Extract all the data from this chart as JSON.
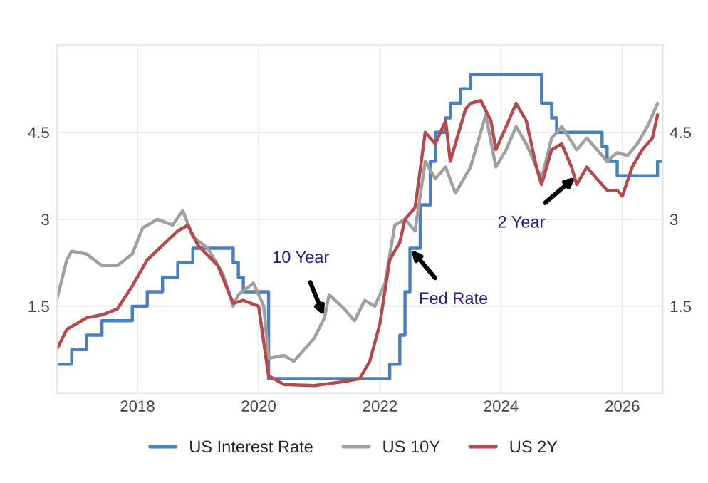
{
  "chart_data": {
    "type": "line",
    "xlim": [
      "2016-09",
      "2026-09"
    ],
    "xticks": [
      "2018",
      "2020",
      "2022",
      "2024",
      "2026"
    ],
    "ylim": [
      0,
      6
    ],
    "yticks": [
      1.5,
      3,
      4.5
    ],
    "y2lim": [
      0,
      6
    ],
    "y2ticks": [
      1.5,
      3,
      4.5
    ],
    "grid": true,
    "legend": "bottom",
    "series": [
      {
        "name": "US Interest Rate",
        "type": "step",
        "color": "#4a7fc1",
        "x": [
          "2016-09",
          "2016-12",
          "2017-03",
          "2017-06",
          "2017-12",
          "2018-03",
          "2018-06",
          "2018-09",
          "2018-12",
          "2019-08",
          "2019-09",
          "2019-10",
          "2020-03",
          "2022-03",
          "2022-05",
          "2022-06",
          "2022-07",
          "2022-09",
          "2022-11",
          "2022-12",
          "2023-02",
          "2023-03",
          "2023-05",
          "2023-07",
          "2024-09",
          "2024-11",
          "2024-12",
          "2025-09",
          "2025-10",
          "2025-12",
          "2026-08",
          "2026-09"
        ],
        "values": [
          0.5,
          0.75,
          1.0,
          1.25,
          1.5,
          1.75,
          2.0,
          2.25,
          2.5,
          2.25,
          2.0,
          1.75,
          0.25,
          0.5,
          1.0,
          1.75,
          2.5,
          3.25,
          4.0,
          4.5,
          4.75,
          5.0,
          5.25,
          5.5,
          5.0,
          4.75,
          4.5,
          4.25,
          4.0,
          3.75,
          4.0,
          4.0
        ]
      },
      {
        "name": "US 10Y",
        "color": "#a0a0a0",
        "x": [
          "2016-09",
          "2016-11",
          "2016-12",
          "2017-03",
          "2017-06",
          "2017-09",
          "2017-12",
          "2018-02",
          "2018-05",
          "2018-08",
          "2018-10",
          "2018-12",
          "2019-03",
          "2019-06",
          "2019-08",
          "2019-09",
          "2019-12",
          "2020-02",
          "2020-03",
          "2020-06",
          "2020-08",
          "2020-12",
          "2021-02",
          "2021-03",
          "2021-06",
          "2021-08",
          "2021-10",
          "2021-12",
          "2022-02",
          "2022-04",
          "2022-06",
          "2022-08",
          "2022-10",
          "2022-12",
          "2023-02",
          "2023-04",
          "2023-07",
          "2023-10",
          "2023-12",
          "2024-02",
          "2024-04",
          "2024-06",
          "2024-09",
          "2024-11",
          "2025-01",
          "2025-04",
          "2025-06",
          "2025-09",
          "2025-10",
          "2025-12",
          "2026-02",
          "2026-04",
          "2026-06",
          "2026-08"
        ],
        "values": [
          1.6,
          2.3,
          2.45,
          2.4,
          2.2,
          2.2,
          2.4,
          2.85,
          3.0,
          2.9,
          3.15,
          2.7,
          2.5,
          2.05,
          1.5,
          1.7,
          1.9,
          1.5,
          0.6,
          0.65,
          0.55,
          0.95,
          1.3,
          1.7,
          1.45,
          1.25,
          1.6,
          1.5,
          1.9,
          2.9,
          3.0,
          2.8,
          4.0,
          3.7,
          3.9,
          3.45,
          3.9,
          4.8,
          3.9,
          4.2,
          4.6,
          4.3,
          3.7,
          4.4,
          4.6,
          4.2,
          4.4,
          4.1,
          4.0,
          4.15,
          4.1,
          4.3,
          4.6,
          5.0
        ]
      },
      {
        "name": "US 2Y",
        "color": "#b5494b",
        "x": [
          "2016-09",
          "2016-11",
          "2017-03",
          "2017-06",
          "2017-09",
          "2017-12",
          "2018-03",
          "2018-06",
          "2018-09",
          "2018-11",
          "2019-01",
          "2019-05",
          "2019-08",
          "2019-10",
          "2020-01",
          "2020-03",
          "2020-06",
          "2020-12",
          "2021-06",
          "2021-09",
          "2021-11",
          "2022-01",
          "2022-03",
          "2022-05",
          "2022-06",
          "2022-08",
          "2022-10",
          "2022-12",
          "2023-02",
          "2023-03",
          "2023-06",
          "2023-07",
          "2023-09",
          "2023-11",
          "2023-12",
          "2024-02",
          "2024-04",
          "2024-06",
          "2024-08",
          "2024-09",
          "2024-11",
          "2025-01",
          "2025-03",
          "2025-04",
          "2025-06",
          "2025-08",
          "2025-10",
          "2025-12",
          "2026-01",
          "2026-03",
          "2026-05",
          "2026-07",
          "2026-08"
        ],
        "values": [
          0.75,
          1.1,
          1.3,
          1.35,
          1.45,
          1.85,
          2.3,
          2.55,
          2.8,
          2.9,
          2.55,
          2.2,
          1.55,
          1.6,
          1.5,
          0.3,
          0.15,
          0.13,
          0.2,
          0.25,
          0.55,
          1.2,
          2.3,
          2.6,
          3.0,
          3.2,
          4.5,
          4.3,
          4.7,
          4.0,
          4.9,
          5.0,
          5.05,
          4.7,
          4.2,
          4.6,
          5.0,
          4.7,
          3.9,
          3.6,
          4.2,
          4.3,
          3.9,
          3.6,
          3.9,
          3.7,
          3.5,
          3.5,
          3.4,
          3.9,
          4.2,
          4.4,
          4.8
        ]
      }
    ],
    "annotations": [
      {
        "text": "10 Year",
        "x": "2021-02",
        "y": 1.3
      },
      {
        "text": "Fed Rate",
        "x": "2022-07",
        "y": 2.5
      },
      {
        "text": "2 Year",
        "x": "2025-04",
        "y": 3.75
      }
    ]
  }
}
